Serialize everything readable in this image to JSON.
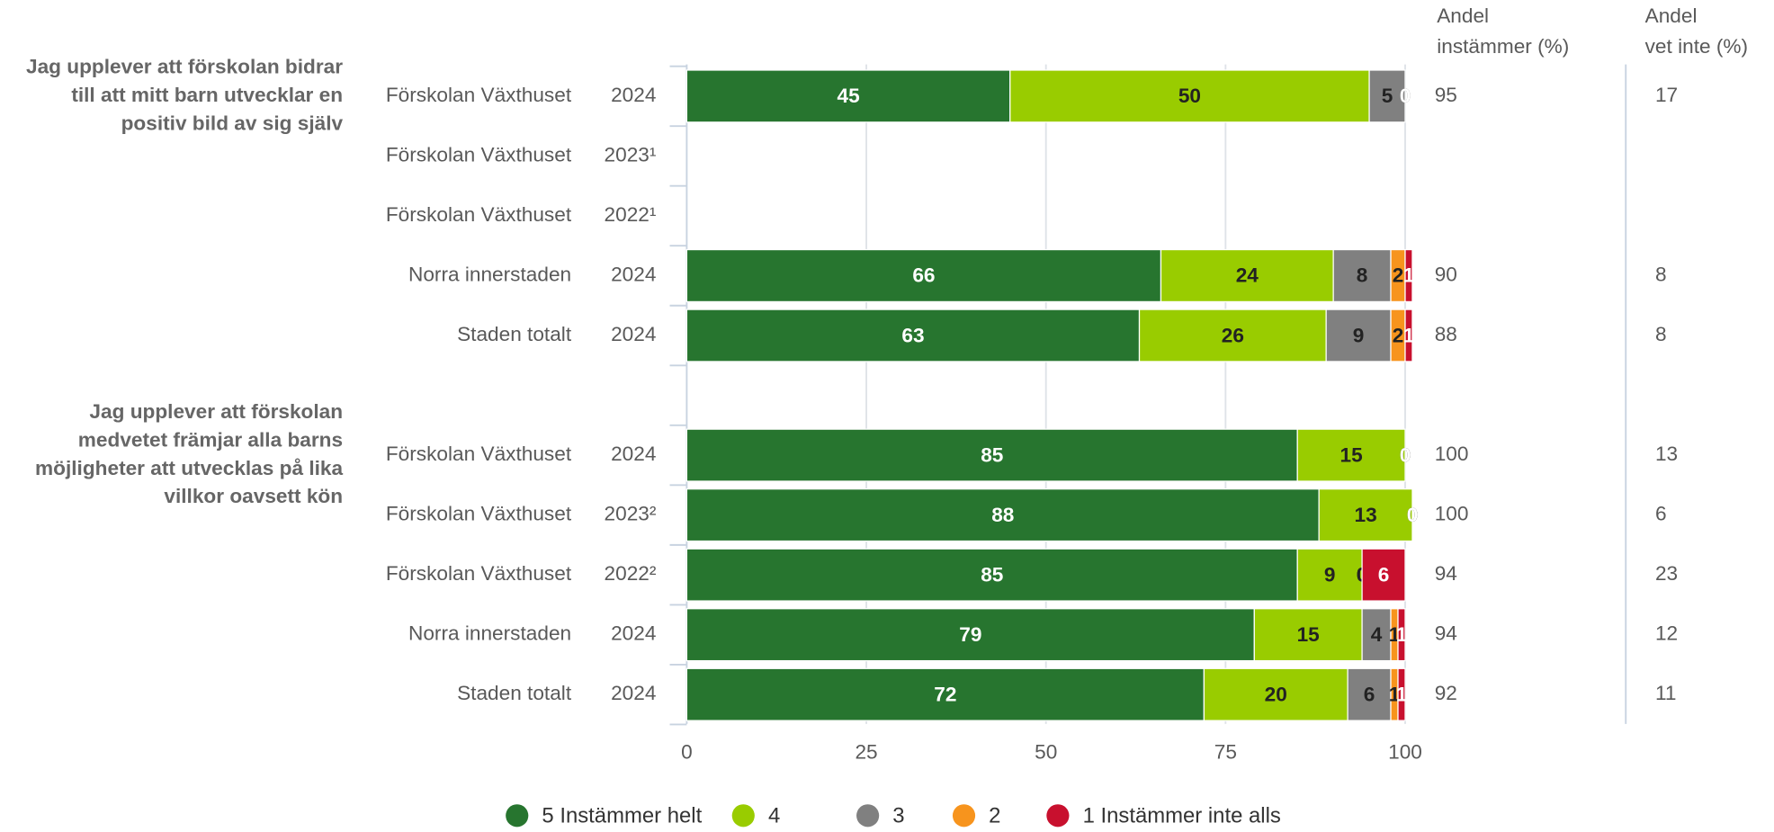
{
  "chart_data": {
    "type": "bar",
    "orientation": "horizontal",
    "stacked": true,
    "xlim": [
      0,
      100
    ],
    "xticks": [
      0,
      25,
      50,
      75,
      100
    ],
    "grid": true,
    "legend": "bottom",
    "agree_header": [
      "Andel",
      "instämmer (%)"
    ],
    "unknown_header": [
      "Andel",
      "vet inte (%)"
    ],
    "series": [
      {
        "name": "5 Instämmer helt",
        "color": "#27752f"
      },
      {
        "name": "4",
        "color": "#99cc00"
      },
      {
        "name": "3",
        "color": "#808080"
      },
      {
        "name": "2",
        "color": "#f7941d"
      },
      {
        "name": "1 Instämmer inte alls",
        "color": "#c8102e"
      }
    ],
    "groups": [
      {
        "title": [
          "Jag upplever att förskolan bidrar",
          "till att mitt barn utvecklar en",
          "positiv bild av sig själv"
        ],
        "rows": [
          {
            "name": "Förskolan Växthuset",
            "year": "2024",
            "values": [
              45,
              50,
              5,
              0,
              0
            ],
            "agree": 95,
            "unknown": 17
          },
          {
            "name": "Förskolan Växthuset",
            "year": "2023¹",
            "values": null,
            "agree": null,
            "unknown": null
          },
          {
            "name": "Förskolan Växthuset",
            "year": "2022¹",
            "values": null,
            "agree": null,
            "unknown": null
          },
          {
            "name": "Norra innerstaden",
            "year": "2024",
            "values": [
              66,
              24,
              8,
              2,
              1
            ],
            "agree": 90,
            "unknown": 8
          },
          {
            "name": "Staden totalt",
            "year": "2024",
            "values": [
              63,
              26,
              9,
              2,
              1
            ],
            "agree": 88,
            "unknown": 8
          }
        ]
      },
      {
        "title": [
          "Jag upplever att förskolan",
          "medvetet främjar alla barns",
          "möjligheter att utvecklas på lika",
          "villkor oavsett kön"
        ],
        "rows": [
          {
            "name": "Förskolan Växthuset",
            "year": "2024",
            "values": [
              85,
              15,
              0,
              0,
              0
            ],
            "agree": 100,
            "unknown": 13
          },
          {
            "name": "Förskolan Växthuset",
            "year": "2023²",
            "values": [
              88,
              13,
              0,
              0,
              0
            ],
            "agree": 100,
            "unknown": 6
          },
          {
            "name": "Förskolan Växthuset",
            "year": "2022²",
            "values": [
              85,
              9,
              0,
              0,
              6
            ],
            "agree": 94,
            "unknown": 23
          },
          {
            "name": "Norra innerstaden",
            "year": "2024",
            "values": [
              79,
              15,
              4,
              1,
              1
            ],
            "agree": 94,
            "unknown": 12
          },
          {
            "name": "Staden totalt",
            "year": "2024",
            "values": [
              72,
              20,
              6,
              1,
              1
            ],
            "agree": 92,
            "unknown": 11
          }
        ]
      }
    ]
  }
}
